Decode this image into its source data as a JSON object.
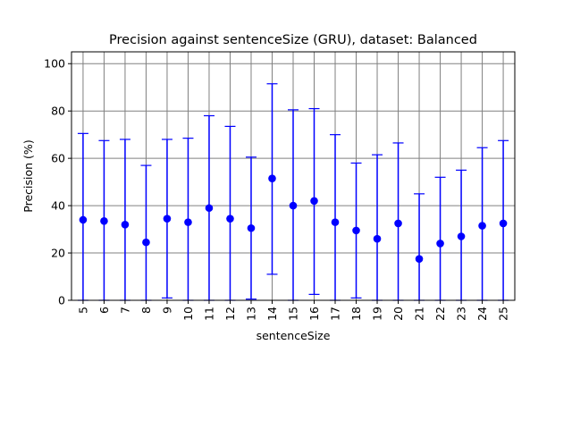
{
  "chart_data": {
    "type": "scatter",
    "title": "Precision against sentenceSize (GRU), dataset: Balanced",
    "xlabel": "sentenceSize",
    "ylabel": "Precision (%)",
    "ylim": [
      0,
      105
    ],
    "yticks": [
      0,
      20,
      40,
      60,
      80,
      100
    ],
    "grid": true,
    "color": "#0000ff",
    "categories": [
      "5",
      "6",
      "7",
      "8",
      "9",
      "10",
      "11",
      "12",
      "13",
      "14",
      "15",
      "16",
      "17",
      "18",
      "19",
      "20",
      "21",
      "22",
      "23",
      "24",
      "25"
    ],
    "series": [
      {
        "values": [
          34.0,
          33.5,
          32.0,
          24.5,
          34.5,
          33.0,
          39.0,
          34.5,
          30.5,
          51.5,
          40.0,
          42.0,
          33.0,
          29.5,
          26.0,
          32.5,
          17.5,
          24.0,
          27.0,
          31.5,
          32.5
        ],
        "upper": [
          70.5,
          67.5,
          68.0,
          57.0,
          68.0,
          68.5,
          78.0,
          73.5,
          60.5,
          91.5,
          80.5,
          81.0,
          70.0,
          58.0,
          61.5,
          66.5,
          45.0,
          52.0,
          55.0,
          64.5,
          67.5
        ],
        "lower": [
          0,
          0,
          0,
          0,
          1.0,
          0,
          0,
          0,
          0.5,
          11.0,
          0,
          2.5,
          0,
          1.0,
          0,
          0,
          0,
          0,
          0,
          0,
          0
        ]
      }
    ]
  }
}
